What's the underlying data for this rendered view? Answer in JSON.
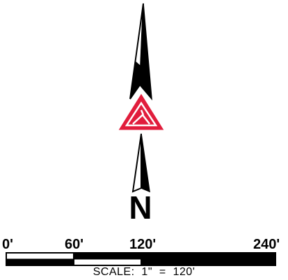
{
  "north_arrow": {
    "direction_label": "N",
    "emblem_icon": "red-triangle-emblem-icon",
    "emblem_color": "#e11d3c",
    "arrow_color": "#000000"
  },
  "scale_bar": {
    "tick_labels": [
      "0'",
      "60'",
      "120'",
      "240'"
    ],
    "caption": "SCALE:  1\"  =  120'",
    "segment_colors": [
      "#ffffff",
      "#000000",
      "#000000"
    ]
  }
}
